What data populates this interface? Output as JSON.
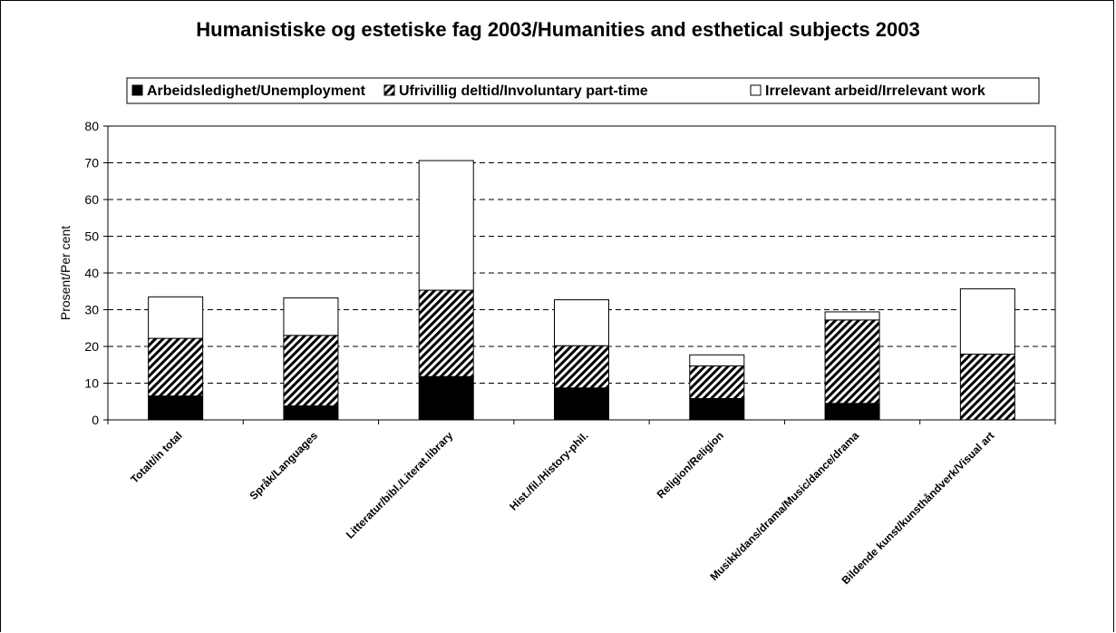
{
  "chart_data": {
    "type": "bar",
    "stacked": true,
    "title": "Humanistiske og estetiske fag 2003/Humanities and esthetical subjects 2003",
    "ylabel": "Prosent/Per cent",
    "xlabel": "",
    "ylim": [
      0,
      80
    ],
    "yticks": [
      "0",
      "10",
      "20",
      "30",
      "40",
      "50",
      "60",
      "70",
      "80"
    ],
    "grid": "dashed horizontal",
    "legend_placement": "top",
    "categories": [
      "Totalt/in total",
      "Språk/Languages",
      "Litteratur/bibl./Literat.library",
      "Hist./fil./History-phil.",
      "Religion/Religion",
      "Musikk/dans/drama/Music/dance/drama",
      "Bildende kunst/kunsthåndverk/Visual art"
    ],
    "series": [
      {
        "name": "Arbeidsledighet/Unemployment",
        "fill": "solid",
        "color": "#000000",
        "values": [
          6.5,
          3.8,
          11.8,
          8.7,
          5.8,
          4.5,
          0
        ]
      },
      {
        "name": "Ufrivillig deltid/Involuntary part-time",
        "fill": "hatched",
        "color": "#000000",
        "values": [
          15.7,
          19.2,
          23.5,
          11.5,
          8.9,
          22.7,
          17.9
        ]
      },
      {
        "name": "Irrelevant arbeid/Irrelevant work",
        "fill": "white",
        "color": "#ffffff",
        "values": [
          11.3,
          10.2,
          35.3,
          12.5,
          3.0,
          2.2,
          17.8
        ]
      }
    ]
  }
}
